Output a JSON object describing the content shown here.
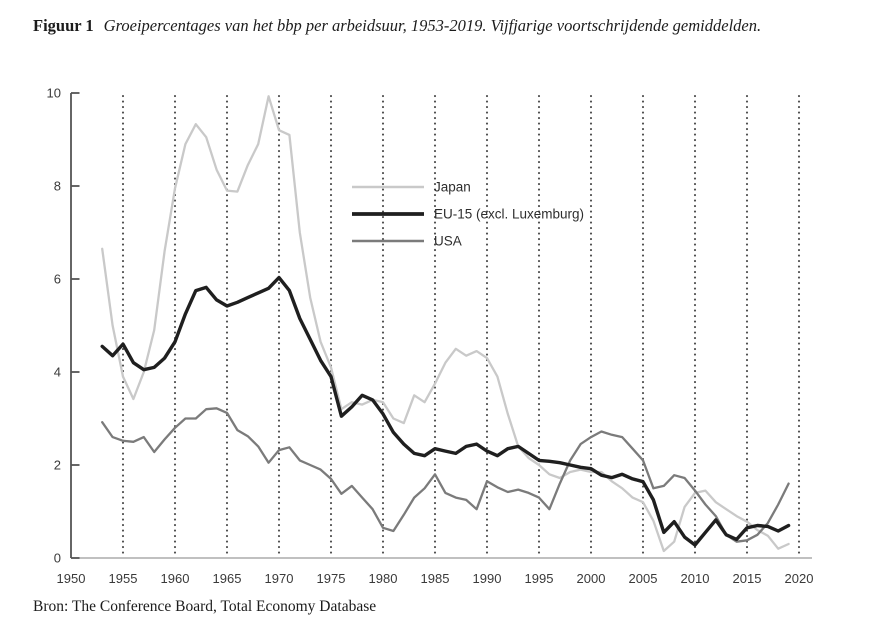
{
  "figure": {
    "label": "Figuur 1",
    "title": "Groeipercentages van het bbp per arbeidsuur, 1953-2019. Vijfjarige voortschrijdende gemiddelden.",
    "source": "Bron: The Conference Board, Total Economy Database"
  },
  "chart_data": {
    "type": "line",
    "title": "Groeipercentages van het bbp per arbeidsuur, 1953-2019. Vijfjarige voortschrijdende gemiddelden.",
    "xlabel": "",
    "ylabel": "",
    "xlim": [
      1950,
      2020
    ],
    "ylim": [
      0,
      10
    ],
    "x_ticks": [
      1950,
      1955,
      1960,
      1965,
      1970,
      1975,
      1980,
      1985,
      1990,
      1995,
      2000,
      2005,
      2010,
      2015,
      2020
    ],
    "y_ticks": [
      0,
      2,
      4,
      6,
      8,
      10
    ],
    "grid": "vertical-dotted",
    "legend_position": "inside-upper-middle-left",
    "x": [
      1953,
      1954,
      1955,
      1956,
      1957,
      1958,
      1959,
      1960,
      1961,
      1962,
      1963,
      1964,
      1965,
      1966,
      1967,
      1968,
      1969,
      1970,
      1971,
      1972,
      1973,
      1974,
      1975,
      1976,
      1977,
      1978,
      1979,
      1980,
      1981,
      1982,
      1983,
      1984,
      1985,
      1986,
      1987,
      1988,
      1989,
      1990,
      1991,
      1992,
      1993,
      1994,
      1995,
      1996,
      1997,
      1998,
      1999,
      2000,
      2001,
      2002,
      2003,
      2004,
      2005,
      2006,
      2007,
      2008,
      2009,
      2010,
      2011,
      2012,
      2013,
      2014,
      2015,
      2016,
      2017,
      2018,
      2019
    ],
    "series": [
      {
        "name": "Japan",
        "color": "#c9c9c9",
        "stroke_width": 2.3,
        "values": [
          6.65,
          5.0,
          3.9,
          3.42,
          4.0,
          4.9,
          6.6,
          7.95,
          8.9,
          9.33,
          9.05,
          8.35,
          7.9,
          7.88,
          8.45,
          8.9,
          9.93,
          9.2,
          9.1,
          7.0,
          5.6,
          4.65,
          4.1,
          3.2,
          3.35,
          3.3,
          3.4,
          3.35,
          3.0,
          2.9,
          3.5,
          3.35,
          3.75,
          4.2,
          4.5,
          4.35,
          4.45,
          4.3,
          3.9,
          3.1,
          2.4,
          2.15,
          2.0,
          1.8,
          1.72,
          1.85,
          1.9,
          1.85,
          1.85,
          1.65,
          1.5,
          1.3,
          1.2,
          0.8,
          0.15,
          0.35,
          1.1,
          1.4,
          1.45,
          1.2,
          1.05,
          0.9,
          0.78,
          0.6,
          0.48,
          0.2,
          0.3
        ]
      },
      {
        "name": "EU-15 (excl. Luxemburg)",
        "color": "#1f1f1f",
        "stroke_width": 3.4,
        "values": [
          4.55,
          4.35,
          4.6,
          4.2,
          4.05,
          4.1,
          4.3,
          4.65,
          5.25,
          5.75,
          5.82,
          5.55,
          5.42,
          5.5,
          5.6,
          5.7,
          5.8,
          6.03,
          5.75,
          5.15,
          4.7,
          4.25,
          3.9,
          3.05,
          3.25,
          3.5,
          3.4,
          3.1,
          2.7,
          2.45,
          2.25,
          2.2,
          2.35,
          2.3,
          2.25,
          2.4,
          2.45,
          2.3,
          2.2,
          2.35,
          2.4,
          2.25,
          2.1,
          2.08,
          2.05,
          2.0,
          1.95,
          1.92,
          1.78,
          1.73,
          1.8,
          1.7,
          1.64,
          1.25,
          0.55,
          0.78,
          0.45,
          0.28,
          0.55,
          0.82,
          0.5,
          0.4,
          0.65,
          0.7,
          0.68,
          0.58,
          0.7
        ]
      },
      {
        "name": "USA",
        "color": "#7b7b7b",
        "stroke_width": 2.3,
        "values": [
          2.92,
          2.6,
          2.52,
          2.5,
          2.6,
          2.28,
          2.55,
          2.8,
          3.0,
          3.0,
          3.2,
          3.22,
          3.12,
          2.75,
          2.62,
          2.4,
          2.05,
          2.32,
          2.38,
          2.1,
          2.0,
          1.9,
          1.7,
          1.38,
          1.55,
          1.3,
          1.05,
          0.65,
          0.58,
          0.93,
          1.3,
          1.5,
          1.8,
          1.4,
          1.3,
          1.25,
          1.05,
          1.65,
          1.52,
          1.42,
          1.47,
          1.4,
          1.3,
          1.05,
          1.6,
          2.1,
          2.45,
          2.6,
          2.72,
          2.65,
          2.6,
          2.35,
          2.1,
          1.5,
          1.55,
          1.78,
          1.72,
          1.45,
          1.15,
          0.9,
          0.5,
          0.35,
          0.38,
          0.5,
          0.75,
          1.15,
          1.6
        ]
      }
    ],
    "axis_color": "#555555",
    "x_axis_color": "#9a9a9a",
    "gridline_color": "#4d4d4d"
  }
}
